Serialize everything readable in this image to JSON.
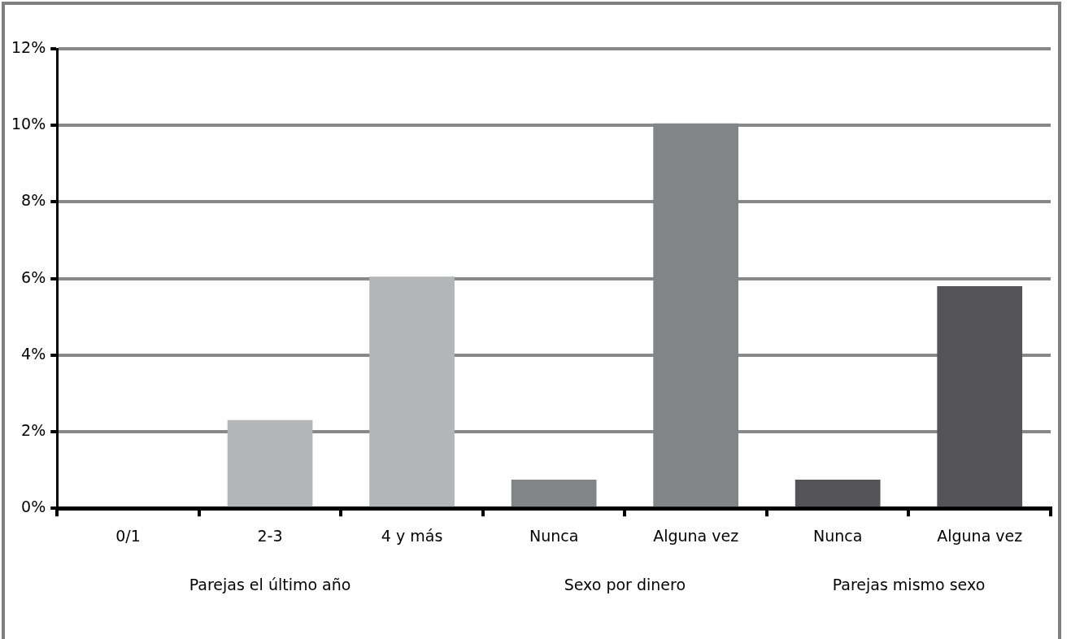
{
  "chart_data": {
    "type": "bar",
    "categories": [
      "0/1",
      "2-3",
      "4 y más",
      "Nunca",
      "Alguna vez",
      "Nunca",
      "Alguna vez"
    ],
    "values": [
      0,
      2.3,
      6.05,
      0.75,
      10.05,
      0.75,
      5.8
    ],
    "colors": [
      "#b4b5b7",
      "#b4b5b7",
      "#b4b5b7",
      "#838486",
      "#838486",
      "#545456",
      "#545456"
    ],
    "ylim": [
      0,
      12
    ],
    "yticks": [
      {
        "value": 0,
        "label": "0%"
      },
      {
        "value": 2,
        "label": "2%"
      },
      {
        "value": 4,
        "label": "4%"
      },
      {
        "value": 6,
        "label": "6%"
      },
      {
        "value": 8,
        "label": "8%"
      },
      {
        "value": 10,
        "label": "10%"
      },
      {
        "value": 12,
        "label": "12%"
      }
    ],
    "grid": "y",
    "legend": false,
    "annotations": [
      "Parejas el último año",
      "Sexo por dinero",
      "Parejas mismo sexo"
    ]
  }
}
